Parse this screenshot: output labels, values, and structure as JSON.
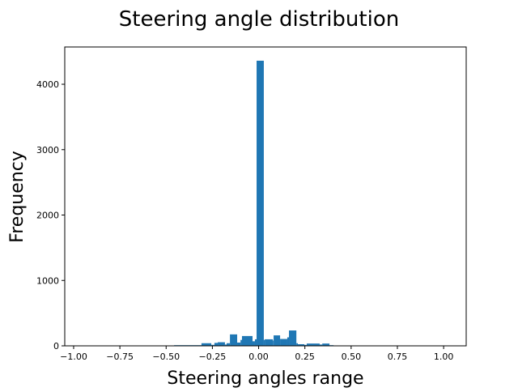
{
  "chart_data": {
    "type": "bar",
    "title": "Steering angle distribution",
    "xlabel": "Steering angles range",
    "ylabel": "Frequency",
    "xlim": [
      -1.048,
      1.122
    ],
    "ylim": [
      0,
      4570
    ],
    "xticks": [
      -1.0,
      -0.75,
      -0.5,
      -0.25,
      0.0,
      0.25,
      0.5,
      0.75,
      1.0
    ],
    "xtick_labels": [
      "−1.00",
      "−0.75",
      "−0.50",
      "−0.25",
      "0.00",
      "0.25",
      "0.50",
      "0.75",
      "1.00"
    ],
    "yticks": [
      0,
      1000,
      2000,
      3000,
      4000
    ],
    "ytick_labels": [
      "0",
      "1000",
      "2000",
      "3000",
      "4000"
    ],
    "grid": false,
    "bar_color": "#1f77b4",
    "bins": [
      {
        "from": -0.457,
        "to": -0.309,
        "count": 10
      },
      {
        "from": -0.309,
        "to": -0.256,
        "count": 40
      },
      {
        "from": -0.256,
        "to": -0.239,
        "count": 15
      },
      {
        "from": -0.239,
        "to": -0.221,
        "count": 45
      },
      {
        "from": -0.221,
        "to": -0.182,
        "count": 55
      },
      {
        "from": -0.182,
        "to": -0.173,
        "count": 20
      },
      {
        "from": -0.173,
        "to": -0.155,
        "count": 40
      },
      {
        "from": -0.155,
        "to": -0.116,
        "count": 175
      },
      {
        "from": -0.116,
        "to": -0.098,
        "count": 50
      },
      {
        "from": -0.098,
        "to": -0.09,
        "count": 90
      },
      {
        "from": -0.09,
        "to": -0.033,
        "count": 150
      },
      {
        "from": -0.033,
        "to": -0.02,
        "count": 70
      },
      {
        "from": -0.02,
        "to": -0.011,
        "count": 100
      },
      {
        "from": -0.011,
        "to": 0.028,
        "count": 4360
      },
      {
        "from": 0.028,
        "to": 0.033,
        "count": 90
      },
      {
        "from": 0.033,
        "to": 0.077,
        "count": 100
      },
      {
        "from": 0.077,
        "to": 0.081,
        "count": 80
      },
      {
        "from": 0.081,
        "to": 0.116,
        "count": 160
      },
      {
        "from": 0.116,
        "to": 0.155,
        "count": 105
      },
      {
        "from": 0.155,
        "to": 0.164,
        "count": 130
      },
      {
        "from": 0.164,
        "to": 0.204,
        "count": 235
      },
      {
        "from": 0.204,
        "to": 0.212,
        "count": 40
      },
      {
        "from": 0.212,
        "to": 0.247,
        "count": 25
      },
      {
        "from": 0.247,
        "to": 0.26,
        "count": 15
      },
      {
        "from": 0.26,
        "to": 0.33,
        "count": 35
      },
      {
        "from": 0.33,
        "to": 0.344,
        "count": 20
      },
      {
        "from": 0.344,
        "to": 0.383,
        "count": 35
      },
      {
        "from": 0.383,
        "to": 0.405,
        "count": 10
      }
    ]
  }
}
